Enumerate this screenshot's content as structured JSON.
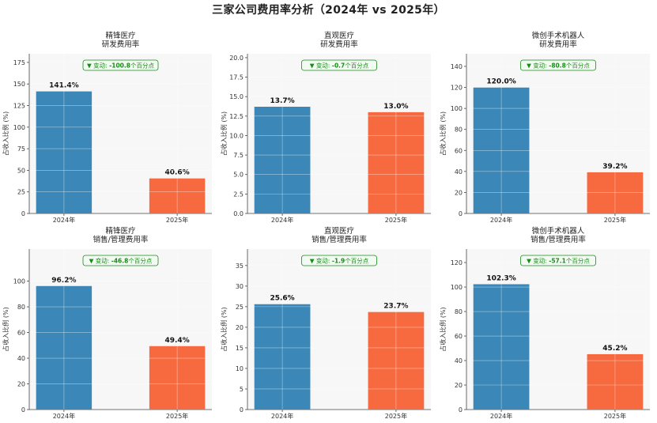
{
  "figure_title": "三家公司费用率分析（2024年 vs 2025年）",
  "colors": {
    "bar_2024": "#3a87b8",
    "bar_2025": "#f7693f",
    "badge": "#1a8a1a",
    "panel_bg": "#f7f7f7"
  },
  "chart_data": [
    {
      "type": "bar",
      "company": "精锋医疗",
      "metric": "研发费用率",
      "title": "精锋医疗\n研发费用率",
      "categories": [
        "2024年",
        "2025年"
      ],
      "values": [
        141.4,
        40.6
      ],
      "value_labels": [
        "141.4%",
        "40.6%"
      ],
      "ylabel": "占收入比例 (%)",
      "ylim": [
        0,
        185
      ],
      "yticks": [
        0,
        25,
        50,
        75,
        100,
        125,
        150,
        175
      ],
      "change_prefix": "▼ 变动: ",
      "change_value": "-100.8",
      "change_suffix": "个百分点"
    },
    {
      "type": "bar",
      "company": "直观医疗",
      "metric": "研发费用率",
      "title": "直观医疗\n研发费用率",
      "categories": [
        "2024年",
        "2025年"
      ],
      "values": [
        13.7,
        13.0
      ],
      "value_labels": [
        "13.7%",
        "13.0%"
      ],
      "ylabel": "占收入比例 (%)",
      "ylim": [
        0,
        20.5
      ],
      "yticks": [
        0.0,
        2.5,
        5.0,
        7.5,
        10.0,
        12.5,
        15.0,
        17.5,
        20.0
      ],
      "change_prefix": "▼ 变动: ",
      "change_value": "-0.7",
      "change_suffix": "个百分点"
    },
    {
      "type": "bar",
      "company": "微创手术机器人",
      "metric": "研发费用率",
      "title": "微创手术机器人\n研发费用率",
      "categories": [
        "2024年",
        "2025年"
      ],
      "values": [
        120.0,
        39.2
      ],
      "value_labels": [
        "120.0%",
        "39.2%"
      ],
      "ylabel": "占收入比例 (%)",
      "ylim": [
        0,
        152
      ],
      "yticks": [
        0,
        20,
        40,
        60,
        80,
        100,
        120,
        140
      ],
      "change_prefix": "▼ 变动: ",
      "change_value": "-80.8",
      "change_suffix": "个百分点"
    },
    {
      "type": "bar",
      "company": "精锋医疗",
      "metric": "销售/管理费用率",
      "title": "精锋医疗\n销售/管理费用率",
      "categories": [
        "2024年",
        "2025年"
      ],
      "values": [
        96.2,
        49.4
      ],
      "value_labels": [
        "96.2%",
        "49.4%"
      ],
      "ylabel": "占收入比例 (%)",
      "ylim": [
        0,
        125
      ],
      "yticks": [
        0,
        20,
        40,
        60,
        80,
        100
      ],
      "change_prefix": "▼ 变动: ",
      "change_value": "-46.8",
      "change_suffix": "个百分点"
    },
    {
      "type": "bar",
      "company": "直观医疗",
      "metric": "销售/管理费用率",
      "title": "直观医疗\n销售/管理费用率",
      "categories": [
        "2024年",
        "2025年"
      ],
      "values": [
        25.6,
        23.7
      ],
      "value_labels": [
        "25.6%",
        "23.7%"
      ],
      "ylabel": "占收入比例 (%)",
      "ylim": [
        0,
        39
      ],
      "yticks": [
        0,
        5,
        10,
        15,
        20,
        25,
        30,
        35
      ],
      "change_prefix": "▼ 变动: ",
      "change_value": "-1.9",
      "change_suffix": "个百分点"
    },
    {
      "type": "bar",
      "company": "微创手术机器人",
      "metric": "销售/管理费用率",
      "title": "微创手术机器人\n销售/管理费用率",
      "categories": [
        "2024年",
        "2025年"
      ],
      "values": [
        102.3,
        45.2
      ],
      "value_labels": [
        "102.3%",
        "45.2%"
      ],
      "ylabel": "占收入比例 (%)",
      "ylim": [
        0,
        131
      ],
      "yticks": [
        0,
        20,
        40,
        60,
        80,
        100,
        120
      ],
      "change_prefix": "▼ 变动: ",
      "change_value": "-57.1",
      "change_suffix": "个百分点"
    }
  ]
}
